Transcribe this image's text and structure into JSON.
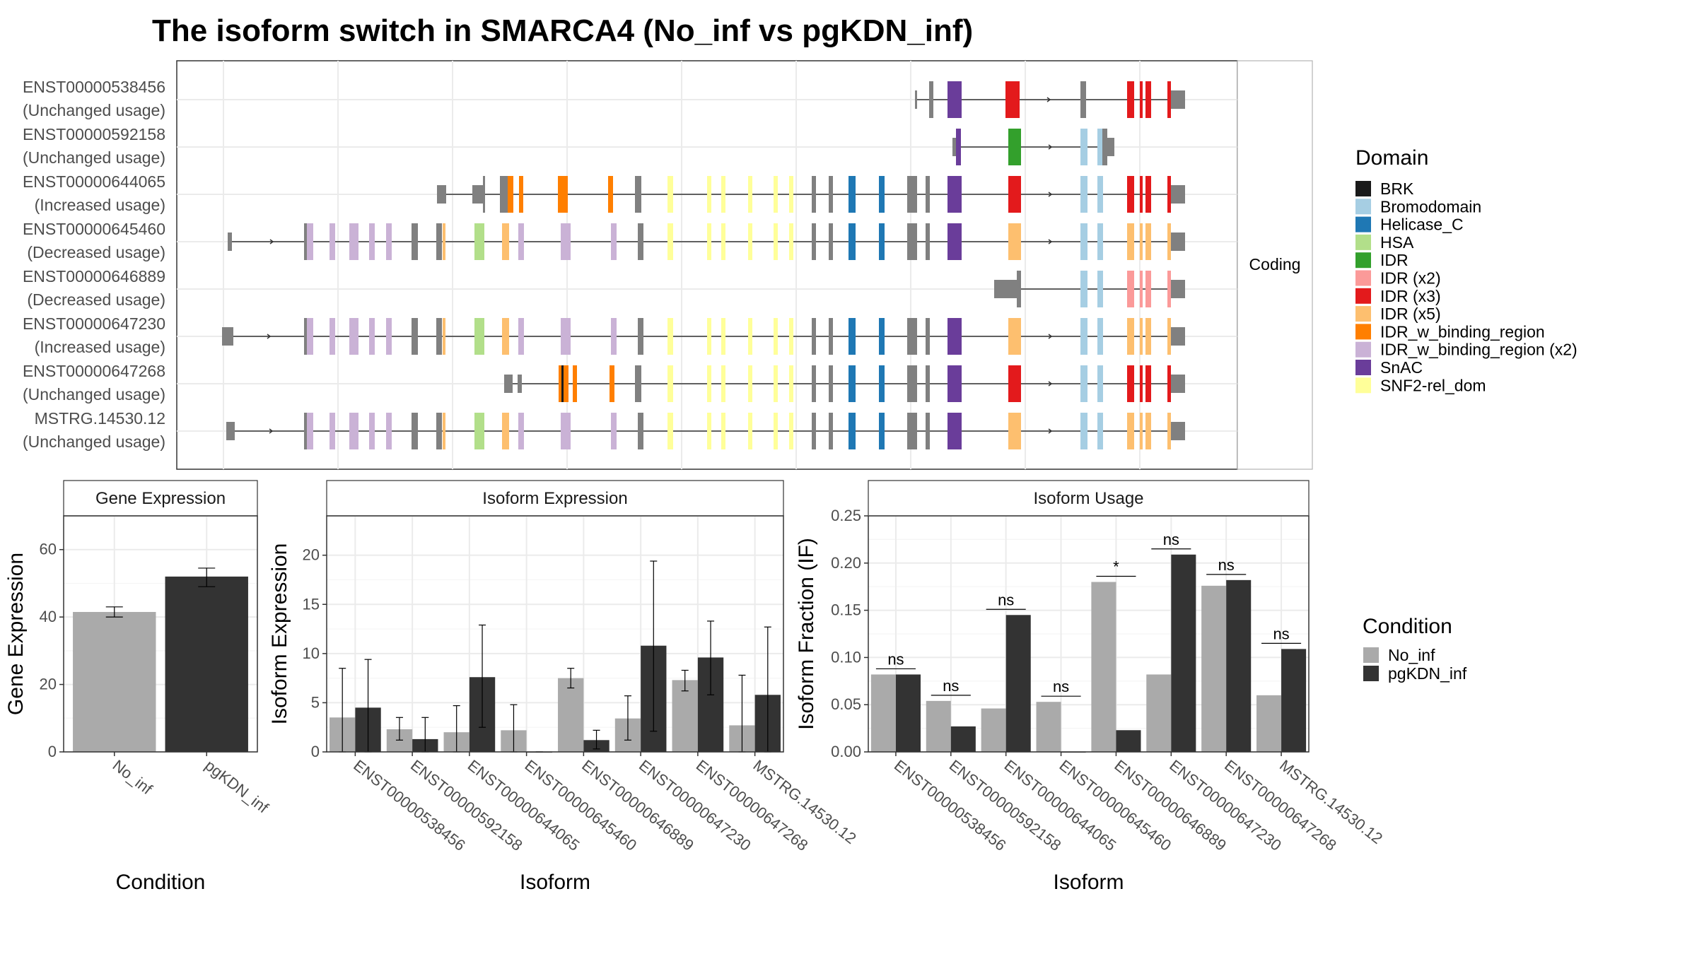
{
  "title": "The isoform switch in SMARCA4 (No_inf vs pgKDN_inf)",
  "structure_strip": "Coding",
  "domain_legend": {
    "title": "Domain",
    "items": [
      {
        "name": "BRK",
        "color": "#1a1a1a"
      },
      {
        "name": "Bromodomain",
        "color": "#a6cee3"
      },
      {
        "name": "Helicase_C",
        "color": "#1f78b4"
      },
      {
        "name": "HSA",
        "color": "#b2df8a"
      },
      {
        "name": "IDR",
        "color": "#33a02c"
      },
      {
        "name": "IDR (x2)",
        "color": "#fb9a99"
      },
      {
        "name": "IDR (x3)",
        "color": "#e31a1c"
      },
      {
        "name": "IDR (x5)",
        "color": "#fdbf6f"
      },
      {
        "name": "IDR_w_binding_region",
        "color": "#ff7f00"
      },
      {
        "name": "IDR_w_binding_region (x2)",
        "color": "#cab2d6"
      },
      {
        "name": "SnAC",
        "color": "#6a3d9a"
      },
      {
        "name": "SNF2-rel_dom",
        "color": "#ffff99"
      }
    ]
  },
  "condition_legend": {
    "title": "Condition",
    "items": [
      {
        "name": "No_inf",
        "color": "#aaaaaa"
      },
      {
        "name": "pgKDN_inf",
        "color": "#333333"
      }
    ]
  },
  "isoform_labels": [
    {
      "id": "ENST00000538456",
      "usage": "(Unchanged usage)"
    },
    {
      "id": "ENST00000592158",
      "usage": "(Unchanged usage)"
    },
    {
      "id": "ENST00000644065",
      "usage": "(Increased usage)"
    },
    {
      "id": "ENST00000645460",
      "usage": "(Decreased usage)"
    },
    {
      "id": "ENST00000646889",
      "usage": "(Decreased usage)"
    },
    {
      "id": "ENST00000647230",
      "usage": "(Increased usage)"
    },
    {
      "id": "ENST00000647268",
      "usage": "(Unchanged usage)"
    },
    {
      "id": "MSTRG.14530.12",
      "usage": "(Unchanged usage)"
    }
  ],
  "chart_data": [
    {
      "type": "bar",
      "title": "Gene Expression",
      "xlabel": "Condition",
      "ylabel": "Gene Expression",
      "categories": [
        "No_inf",
        "pgKDN_inf"
      ],
      "values": [
        41.5,
        52
      ],
      "error_low": [
        40,
        49
      ],
      "error_high": [
        43,
        54.5
      ],
      "ylim": [
        0,
        70
      ],
      "yticks": [
        0,
        20,
        40,
        60
      ]
    },
    {
      "type": "bar",
      "title": "Isoform Expression",
      "xlabel": "Isoform",
      "ylabel": "Isoform Expression",
      "ylim": [
        0,
        24
      ],
      "yticks": [
        0,
        5,
        10,
        15,
        20
      ],
      "categories": [
        "ENST00000538456",
        "ENST00000592158",
        "ENST00000644065",
        "ENST00000645460",
        "ENST00000646889",
        "ENST00000647230",
        "ENST00000647268",
        "MSTRG.14530.12"
      ],
      "series": [
        {
          "name": "No_inf",
          "values": [
            3.5,
            2.3,
            2.0,
            2.2,
            7.5,
            3.4,
            7.3,
            2.7
          ],
          "error_low": [
            0,
            1.2,
            0,
            0,
            6.5,
            1.2,
            6.2,
            0
          ],
          "error_high": [
            8.5,
            3.5,
            4.7,
            4.8,
            8.5,
            5.7,
            8.3,
            7.8
          ]
        },
        {
          "name": "pgKDN_inf",
          "values": [
            4.5,
            1.3,
            7.6,
            0,
            1.2,
            10.8,
            9.6,
            5.8
          ],
          "error_low": [
            0,
            0,
            2.5,
            0,
            0.3,
            2.1,
            5.8,
            0
          ],
          "error_high": [
            9.4,
            3.5,
            12.9,
            0,
            2.2,
            19.4,
            13.3,
            12.7
          ]
        }
      ]
    },
    {
      "type": "bar",
      "title": "Isoform Usage",
      "xlabel": "Isoform",
      "ylabel": "Isoform Fraction (IF)",
      "ylim": [
        0,
        0.25
      ],
      "yticks": [
        "0.00",
        "0.05",
        "0.10",
        "0.15",
        "0.20",
        "0.25"
      ],
      "categories": [
        "ENST00000538456",
        "ENST00000592158",
        "ENST00000644065",
        "ENST00000645460",
        "ENST00000646889",
        "ENST00000647230",
        "ENST00000647268",
        "MSTRG.14530.12"
      ],
      "series": [
        {
          "name": "No_inf",
          "values": [
            0.082,
            0.054,
            0.046,
            0.053,
            0.18,
            0.082,
            0.176,
            0.06
          ]
        },
        {
          "name": "pgKDN_inf",
          "values": [
            0.082,
            0.027,
            0.145,
            0,
            0.023,
            0.209,
            0.182,
            0.109
          ]
        }
      ],
      "significance": [
        "ns",
        "ns",
        "ns",
        "ns",
        "*",
        "ns",
        "ns",
        "ns"
      ]
    }
  ]
}
